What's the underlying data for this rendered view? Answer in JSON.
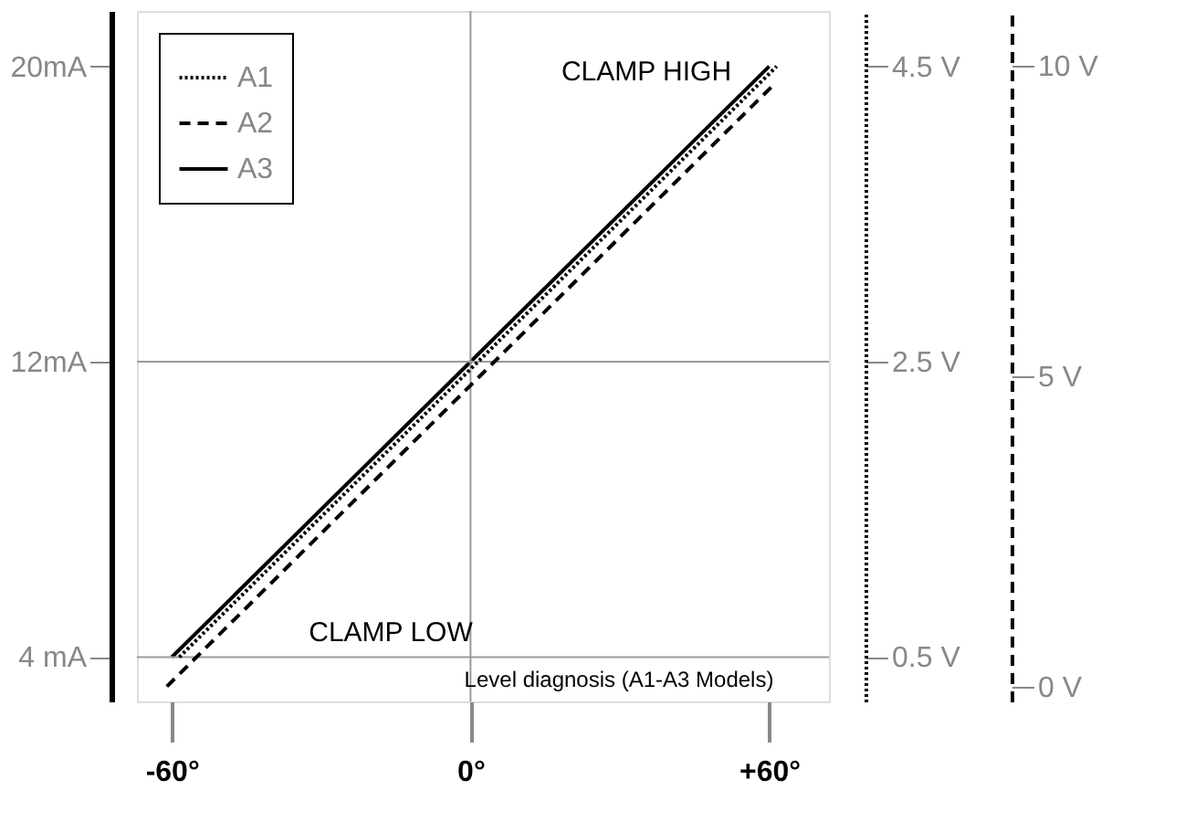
{
  "chart_data": {
    "type": "line",
    "series": [
      {
        "name": "A1",
        "color": "#000000",
        "line_style": "dotted",
        "axis": "y2",
        "x": [
          -58.5,
          61.5
        ],
        "values": [
          0.5,
          4.5
        ]
      },
      {
        "name": "A2",
        "color": "#000000",
        "line_style": "dashed",
        "axis": "y3",
        "x": [
          -61,
          61
        ],
        "values": [
          0,
          9.7
        ]
      },
      {
        "name": "A3",
        "color": "#000000",
        "line_style": "solid",
        "x": [
          -60,
          60
        ],
        "values": [
          4,
          20
        ]
      }
    ],
    "xlim": [
      -67,
      72
    ],
    "xticks": [
      {
        "value": -60,
        "label": "-60°"
      },
      {
        "value": 0,
        "label": "0°"
      },
      {
        "value": 60,
        "label": "+60°"
      }
    ],
    "ylim": [
      2.8,
      21.5
    ],
    "yticks": [
      {
        "value": 4,
        "label": "4 mA"
      },
      {
        "value": 12,
        "label": "12mA"
      },
      {
        "value": 20,
        "label": "20mA"
      }
    ],
    "y2lim": [
      0.2,
      4.875
    ],
    "y2ticks": [
      {
        "value": 0.5,
        "label": "0.5 V"
      },
      {
        "value": 2.5,
        "label": "2.5 V"
      },
      {
        "value": 4.5,
        "label": "4.5 V"
      }
    ],
    "y3lim": [
      -0.24,
      10.88
    ],
    "y3ticks": [
      {
        "value": 0,
        "label": "0 V"
      },
      {
        "value": 5,
        "label": "5 V"
      },
      {
        "value": 10,
        "label": "10 V"
      }
    ],
    "ref_lines": [
      {
        "axis": "y",
        "value": 12,
        "color": "#999999"
      },
      {
        "axis": "y",
        "value": 4,
        "color": "#999999"
      },
      {
        "axis": "x",
        "value": 0,
        "color": "#999999"
      }
    ],
    "annotations": [
      "CLAMP HIGH",
      "CLAMP LOW",
      "Level diagnosis  (A1-A3 Models)"
    ],
    "grid": false,
    "legend": "top left"
  }
}
